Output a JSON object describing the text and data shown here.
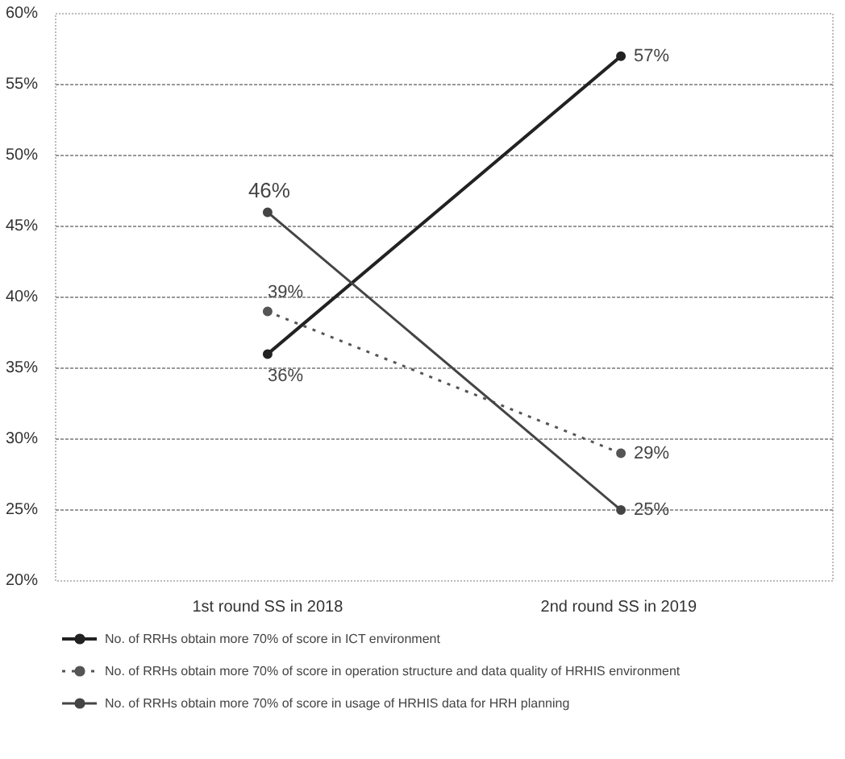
{
  "chart_data": {
    "type": "line",
    "categories": [
      "1st round SS in 2018",
      "2nd  round SS in 2019"
    ],
    "series": [
      {
        "name": "No. of RRHs obtain more 70% of score in ICT environment",
        "color": "#222222",
        "values": [
          36,
          57
        ],
        "value_labels": [
          "36%",
          "57%"
        ]
      },
      {
        "name": "No. of RRHs obtain more 70% of score in operation structure and data quality of HRHIS environment",
        "color": "#555555",
        "values": [
          39,
          29
        ],
        "value_labels": [
          "39%",
          "29%"
        ],
        "line_style": "dotted"
      },
      {
        "name": "No. of RRHs obtain more 70% of score in usage of HRHIS data for HRH planning",
        "color": "#444444",
        "values": [
          46,
          25
        ],
        "value_labels": [
          "46%",
          "25%"
        ]
      }
    ],
    "ylim": [
      20,
      60
    ],
    "yticks": [
      {
        "value": 20,
        "label": "20%"
      },
      {
        "value": 25,
        "label": "25%"
      },
      {
        "value": 30,
        "label": "30%"
      },
      {
        "value": 35,
        "label": "35%"
      },
      {
        "value": 40,
        "label": "40%"
      },
      {
        "value": 45,
        "label": "45%"
      },
      {
        "value": 50,
        "label": "50%"
      },
      {
        "value": 55,
        "label": "55%"
      },
      {
        "value": 60,
        "label": "60%"
      }
    ],
    "grid": "y",
    "legend": "bottom",
    "marker": "circle",
    "line_style": "solid"
  }
}
